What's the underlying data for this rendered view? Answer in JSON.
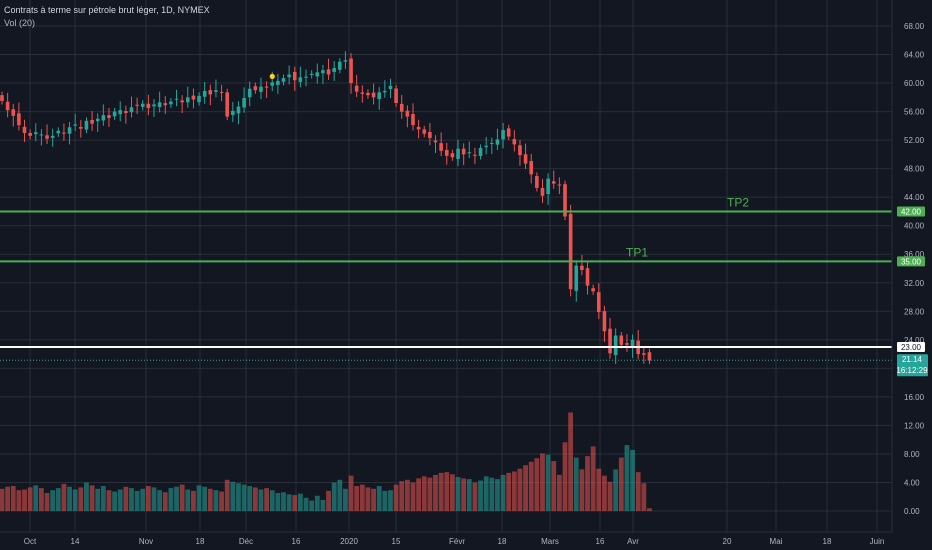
{
  "header": {
    "title": "Contrats à terme sur pétrole brut léger, 1D, NYMEX",
    "volume_indicator": "Vol (20)"
  },
  "colors": {
    "background": "#131722",
    "grid": "#2a2e39",
    "up": "#26a69a",
    "down": "#ef5350",
    "level_line": "#4caf50",
    "level_text": "#4caf50",
    "white_line": "#ffffff",
    "last_price_tag": "#26a69a",
    "marker": "#ffd600"
  },
  "chart_data": {
    "type": "candlestick",
    "title": "Contrats à terme sur pétrole brut léger, 1D, NYMEX",
    "y_ticks": [
      "68.00",
      "64.00",
      "60.00",
      "56.00",
      "52.00",
      "48.00",
      "44.00",
      "40.00",
      "36.00",
      "32.00",
      "28.00",
      "24.00",
      "20.00",
      "16.00",
      "12.00",
      "8.00",
      "4.00",
      "0.00"
    ],
    "x_ticks": [
      "Oct",
      "14",
      "Nov",
      "18",
      "Déc",
      "16",
      "2020",
      "15",
      "Févr",
      "18",
      "Mars",
      "16",
      "Avr",
      "20",
      "Mai",
      "18",
      "Juin"
    ],
    "levels": [
      {
        "label": "TP2",
        "value": 42.0,
        "tag": "42.00",
        "color": "green"
      },
      {
        "label": "TP1",
        "value": 35.0,
        "tag": "35.00",
        "color": "green"
      },
      {
        "label": "",
        "value": 23.0,
        "tag": "23.00",
        "color": "white"
      }
    ],
    "last_price": {
      "value": 21.14,
      "label": "21.14",
      "countdown": "16:12:29"
    },
    "closes": [
      57.5,
      56.2,
      55.4,
      54.1,
      53.0,
      52.6,
      53.1,
      52.8,
      52.2,
      52.6,
      53.3,
      52.9,
      53.8,
      54.2,
      53.6,
      54.7,
      54.3,
      55.0,
      55.5,
      55.1,
      56.0,
      56.2,
      55.8,
      56.6,
      56.9,
      57.1,
      56.5,
      57.0,
      57.3,
      56.9,
      57.4,
      57.8,
      57.3,
      58.0,
      57.7,
      58.2,
      58.9,
      58.4,
      59.0,
      58.7,
      55.3,
      56.1,
      56.7,
      57.9,
      59.2,
      59.0,
      59.5,
      59.4,
      60.1,
      60.3,
      60.7,
      61.2,
      60.4,
      60.8,
      60.9,
      61.3,
      61.5,
      61.8,
      61.2,
      62.1,
      63.0,
      63.2,
      60.0,
      58.8,
      58.5,
      58.3,
      58.0,
      58.7,
      58.9,
      59.6,
      57.2,
      56.0,
      55.3,
      54.1,
      53.5,
      52.9,
      52.3,
      51.7,
      50.5,
      49.8,
      49.6,
      50.8,
      50.0,
      50.3,
      49.9,
      50.9,
      51.2,
      51.6,
      52.1,
      53.4,
      52.5,
      51.4,
      49.9,
      48.7,
      47.2,
      45.3,
      44.2,
      46.6,
      45.9,
      45.7,
      41.3,
      31.1,
      34.4,
      33.8,
      31.6,
      30.8,
      27.9,
      25.2,
      22.1,
      24.6,
      23.3,
      23.3,
      24.0,
      22.0,
      21.9,
      21.1
    ],
    "last_close": 21.14,
    "volume": {
      "indicator": "Vol (20)",
      "unit": "M",
      "values": [
        3.2,
        3.5,
        3.6,
        3.0,
        3.1,
        3.4,
        3.7,
        3.3,
        2.6,
        3.0,
        3.3,
        3.9,
        3.5,
        3.1,
        3.4,
        4.1,
        3.7,
        3.2,
        3.6,
        3.0,
        2.8,
        3.1,
        3.5,
        3.3,
        2.9,
        3.2,
        3.6,
        3.4,
        3.0,
        2.7,
        3.3,
        3.5,
        3.8,
        3.1,
        2.9,
        3.7,
        3.5,
        3.2,
        3.0,
        2.8,
        4.5,
        4.2,
        4.0,
        3.8,
        3.6,
        3.4,
        3.1,
        3.3,
        3.0,
        2.6,
        2.7,
        2.4,
        2.3,
        2.5,
        1.9,
        1.5,
        2.2,
        1.6,
        2.9,
        4.1,
        4.5,
        3.2,
        5.1,
        3.6,
        3.8,
        3.4,
        3.2,
        3.6,
        2.9,
        3.0,
        3.8,
        4.3,
        4.5,
        4.1,
        4.7,
        5.0,
        4.8,
        5.2,
        5.5,
        5.6,
        5.3,
        4.9,
        4.7,
        4.6,
        4.1,
        4.4,
        5.0,
        4.8,
        4.6,
        5.2,
        5.5,
        5.7,
        6.1,
        6.6,
        7.1,
        7.6,
        8.3,
        8.1,
        7.2,
        5.2,
        9.9,
        14.2,
        7.7,
        6.0,
        7.9,
        9.3,
        6.1,
        5.1,
        4.2,
        6.0,
        7.7,
        9.5,
        8.8,
        5.6,
        4.0,
        0.4
      ]
    }
  }
}
